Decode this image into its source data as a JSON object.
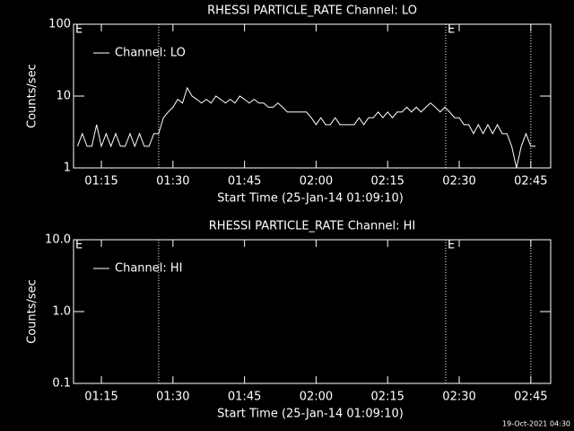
{
  "chart_data": [
    {
      "type": "line",
      "title": "RHESSI PARTICLE_RATE Channel: LO",
      "xlabel": "Start Time (25-Jan-14 01:09:10)",
      "ylabel": "Counts/sec",
      "log_y": true,
      "xlim": [
        "01:09:10",
        "02:49:10"
      ],
      "xticks": [
        "01:15",
        "01:30",
        "01:45",
        "02:00",
        "02:15",
        "02:30",
        "02:45"
      ],
      "ylim": [
        1,
        100
      ],
      "yticks": [
        1,
        10,
        100
      ],
      "vlines": [
        "01:27:00",
        "02:27:10",
        "02:45:00"
      ],
      "annotations": [
        {
          "text": "E",
          "x": "01:09:10"
        },
        {
          "text": "E",
          "x": "02:27:10"
        }
      ],
      "legend": "upper left",
      "x": [
        "01:10",
        "01:11",
        "01:12",
        "01:13",
        "01:14",
        "01:15",
        "01:16",
        "01:17",
        "01:18",
        "01:19",
        "01:20",
        "01:21",
        "01:22",
        "01:23",
        "01:24",
        "01:25",
        "01:26",
        "01:27",
        "01:28",
        "01:29",
        "01:30",
        "01:31",
        "01:32",
        "01:33",
        "01:34",
        "01:35",
        "01:36",
        "01:37",
        "01:38",
        "01:39",
        "01:40",
        "01:41",
        "01:42",
        "01:43",
        "01:44",
        "01:45",
        "01:46",
        "01:47",
        "01:48",
        "01:49",
        "01:50",
        "01:51",
        "01:52",
        "01:53",
        "01:54",
        "01:55",
        "01:56",
        "01:57",
        "01:58",
        "01:59",
        "02:00",
        "02:01",
        "02:02",
        "02:03",
        "02:04",
        "02:05",
        "02:06",
        "02:07",
        "02:08",
        "02:09",
        "02:10",
        "02:11",
        "02:12",
        "02:13",
        "02:14",
        "02:15",
        "02:16",
        "02:17",
        "02:18",
        "02:19",
        "02:20",
        "02:21",
        "02:22",
        "02:23",
        "02:24",
        "02:25",
        "02:26",
        "02:27",
        "02:28",
        "02:29",
        "02:30",
        "02:31",
        "02:32",
        "02:33",
        "02:34",
        "02:35",
        "02:36",
        "02:37",
        "02:38",
        "02:39",
        "02:40",
        "02:41",
        "02:42",
        "02:43",
        "02:44",
        "02:45",
        "02:46"
      ],
      "series": [
        {
          "name": "Channel: LO",
          "color": "#ffffff",
          "values": [
            2,
            3,
            2,
            2,
            4,
            2,
            3,
            2,
            3,
            2,
            2,
            3,
            2,
            3,
            2,
            2,
            3,
            3,
            5,
            6,
            7,
            9,
            8,
            13,
            10,
            9,
            8,
            9,
            8,
            10,
            9,
            8,
            9,
            8,
            10,
            9,
            8,
            9,
            8,
            8,
            7,
            7,
            8,
            7,
            6,
            6,
            6,
            6,
            6,
            5,
            4,
            5,
            4,
            4,
            5,
            4,
            4,
            4,
            4,
            5,
            4,
            5,
            5,
            6,
            5,
            6,
            5,
            6,
            6,
            7,
            6,
            7,
            6,
            7,
            8,
            7,
            6,
            7,
            6,
            5,
            5,
            4,
            4,
            3,
            4,
            3,
            4,
            3,
            4,
            3,
            3,
            2,
            1,
            2,
            3,
            2,
            2
          ]
        }
      ]
    },
    {
      "type": "line",
      "title": "RHESSI PARTICLE_RATE Channel: HI",
      "xlabel": "Start Time (25-Jan-14 01:09:10)",
      "ylabel": "Counts/sec",
      "log_y": true,
      "xlim": [
        "01:09:10",
        "02:49:10"
      ],
      "xticks": [
        "01:15",
        "01:30",
        "01:45",
        "02:00",
        "02:15",
        "02:30",
        "02:45"
      ],
      "ylim": [
        0.1,
        10
      ],
      "yticks": [
        0.1,
        {
          "value": 1,
          "label": "1.0"
        },
        {
          "value": 10,
          "label": "10.0"
        }
      ],
      "vlines": [
        "01:27:00",
        "02:27:10",
        "02:45:00"
      ],
      "annotations": [
        {
          "text": "E",
          "x": "01:09:10"
        },
        {
          "text": "E",
          "x": "02:27:10"
        }
      ],
      "legend": "upper left",
      "x": [],
      "series": [
        {
          "name": "Channel: HI",
          "color": "#ffffff",
          "values": []
        }
      ]
    }
  ],
  "footer": "19-Oct-2021 04:30"
}
